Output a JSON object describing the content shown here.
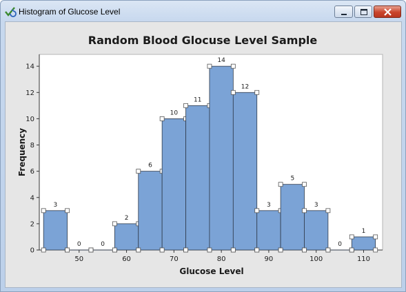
{
  "window": {
    "title": "Histogram of Glucose Level",
    "icon": "minitab-graph-icon",
    "controls": [
      "minimize-icon",
      "maximize-icon",
      "close-icon"
    ]
  },
  "colors": {
    "bar_fill": "#7ba3d6",
    "bar_stroke": "#2f3a4a",
    "plot_background": "#ffffff",
    "panel_background": "#e6e6e6",
    "close_button": "#c9442b"
  },
  "chart_data": {
    "type": "bar",
    "title": "Random Blood Glocuse Level Sample",
    "xlabel": "Glucose Level",
    "ylabel": "Frequency",
    "bin_width": 5,
    "bin_midpoints": [
      45,
      50,
      55,
      60,
      65,
      70,
      75,
      80,
      85,
      90,
      95,
      100,
      105,
      110
    ],
    "values": [
      3,
      0,
      0,
      2,
      6,
      10,
      11,
      14,
      12,
      3,
      5,
      3,
      0,
      1
    ],
    "data_labels": [
      "3",
      "0",
      "0",
      "2",
      "6",
      "10",
      "11",
      "14",
      "12",
      "3",
      "5",
      "3",
      "0",
      "1"
    ],
    "xlim": [
      41.6,
      114
    ],
    "ylim": [
      0,
      14.9
    ],
    "x_ticks": [
      50,
      60,
      70,
      80,
      90,
      100,
      110
    ],
    "x_tick_labels": [
      "50",
      "60",
      "70",
      "80",
      "90",
      "100",
      "110"
    ],
    "y_ticks": [
      0,
      2,
      4,
      6,
      8,
      10,
      12,
      14
    ],
    "y_tick_labels": [
      "0",
      "2",
      "4",
      "6",
      "8",
      "10",
      "12",
      "14"
    ],
    "grid": false,
    "legend": "none"
  }
}
